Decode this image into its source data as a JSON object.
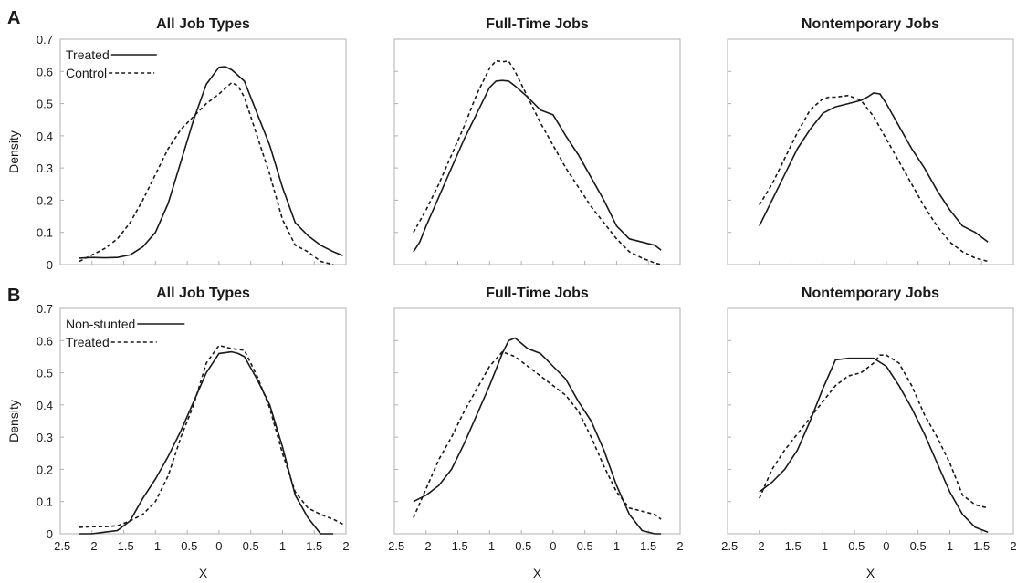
{
  "panels": [
    {
      "letter": "A"
    },
    {
      "letter": "B"
    }
  ],
  "chart_data": [
    {
      "type": "line",
      "panel": "A",
      "title": "All Job Types",
      "xlabel": "",
      "ylabel": "Density",
      "xlim": [
        -2.5,
        2
      ],
      "ylim": [
        0,
        0.7
      ],
      "show_y_ticks": true,
      "show_x_ticks": false,
      "legend": "top-left",
      "series": [
        {
          "name": "Treated",
          "style": "solid",
          "x": [
            -2.2,
            -2.0,
            -1.8,
            -1.6,
            -1.4,
            -1.2,
            -1.0,
            -0.8,
            -0.6,
            -0.4,
            -0.2,
            0.0,
            0.1,
            0.2,
            0.4,
            0.6,
            0.8,
            1.0,
            1.2,
            1.4,
            1.6,
            1.8,
            1.95
          ],
          "y": [
            0.02,
            0.022,
            0.021,
            0.022,
            0.03,
            0.055,
            0.1,
            0.19,
            0.32,
            0.45,
            0.56,
            0.613,
            0.615,
            0.605,
            0.57,
            0.47,
            0.37,
            0.24,
            0.13,
            0.09,
            0.06,
            0.04,
            0.028
          ]
        },
        {
          "name": "Control",
          "style": "dashed",
          "x": [
            -2.2,
            -2.0,
            -1.8,
            -1.6,
            -1.4,
            -1.2,
            -1.0,
            -0.8,
            -0.6,
            -0.4,
            -0.2,
            0.0,
            0.2,
            0.3,
            0.4,
            0.6,
            0.8,
            1.0,
            1.2,
            1.4,
            1.6,
            1.8
          ],
          "y": [
            0.01,
            0.03,
            0.05,
            0.08,
            0.13,
            0.2,
            0.28,
            0.36,
            0.42,
            0.46,
            0.5,
            0.53,
            0.565,
            0.555,
            0.52,
            0.4,
            0.28,
            0.14,
            0.06,
            0.04,
            0.01,
            0.0
          ]
        }
      ]
    },
    {
      "type": "line",
      "panel": "A",
      "title": "Full-Time Jobs",
      "xlabel": "",
      "ylabel": "",
      "xlim": [
        -2.5,
        2
      ],
      "ylim": [
        0,
        0.7
      ],
      "show_y_ticks": false,
      "show_x_ticks": false,
      "series": [
        {
          "style": "solid",
          "x": [
            -2.2,
            -2.1,
            -2.0,
            -1.8,
            -1.6,
            -1.4,
            -1.2,
            -1.0,
            -0.9,
            -0.8,
            -0.7,
            -0.6,
            -0.4,
            -0.2,
            0.0,
            0.2,
            0.4,
            0.6,
            0.8,
            1.0,
            1.2,
            1.4,
            1.6,
            1.7
          ],
          "y": [
            0.04,
            0.07,
            0.12,
            0.21,
            0.3,
            0.39,
            0.47,
            0.55,
            0.57,
            0.572,
            0.57,
            0.555,
            0.52,
            0.48,
            0.465,
            0.4,
            0.34,
            0.27,
            0.2,
            0.12,
            0.08,
            0.07,
            0.06,
            0.045
          ]
        },
        {
          "style": "dashed",
          "x": [
            -2.2,
            -2.0,
            -1.8,
            -1.6,
            -1.4,
            -1.2,
            -1.0,
            -0.9,
            -0.8,
            -0.7,
            -0.6,
            -0.4,
            -0.2,
            0.0,
            0.2,
            0.4,
            0.6,
            0.8,
            1.0,
            1.2,
            1.4,
            1.6,
            1.7
          ],
          "y": [
            0.1,
            0.17,
            0.25,
            0.34,
            0.43,
            0.53,
            0.61,
            0.633,
            0.63,
            0.632,
            0.6,
            0.52,
            0.44,
            0.37,
            0.3,
            0.24,
            0.18,
            0.13,
            0.08,
            0.04,
            0.02,
            0.005,
            0.0
          ]
        }
      ]
    },
    {
      "type": "line",
      "panel": "A",
      "title": "Nontemporary Jobs",
      "xlabel": "",
      "ylabel": "",
      "xlim": [
        -2.5,
        2
      ],
      "ylim": [
        0,
        0.7
      ],
      "show_y_ticks": false,
      "show_x_ticks": false,
      "series": [
        {
          "style": "solid",
          "x": [
            -2.0,
            -1.8,
            -1.6,
            -1.4,
            -1.2,
            -1.0,
            -0.8,
            -0.6,
            -0.4,
            -0.3,
            -0.2,
            -0.1,
            0.0,
            0.2,
            0.4,
            0.6,
            0.8,
            1.0,
            1.2,
            1.4,
            1.6
          ],
          "y": [
            0.12,
            0.2,
            0.28,
            0.36,
            0.42,
            0.47,
            0.49,
            0.5,
            0.51,
            0.52,
            0.533,
            0.53,
            0.5,
            0.43,
            0.36,
            0.3,
            0.23,
            0.17,
            0.12,
            0.1,
            0.07
          ]
        },
        {
          "style": "dashed",
          "x": [
            -2.0,
            -1.8,
            -1.6,
            -1.4,
            -1.2,
            -1.0,
            -0.9,
            -0.8,
            -0.6,
            -0.4,
            -0.2,
            0.0,
            0.2,
            0.4,
            0.6,
            0.8,
            1.0,
            1.2,
            1.4,
            1.6
          ],
          "y": [
            0.185,
            0.25,
            0.33,
            0.41,
            0.48,
            0.515,
            0.52,
            0.52,
            0.525,
            0.51,
            0.46,
            0.39,
            0.32,
            0.25,
            0.18,
            0.12,
            0.07,
            0.04,
            0.02,
            0.01
          ]
        }
      ]
    },
    {
      "type": "line",
      "panel": "B",
      "title": "All Job Types",
      "xlabel": "X",
      "ylabel": "Density",
      "xlim": [
        -2.5,
        2
      ],
      "ylim": [
        0,
        0.7
      ],
      "show_y_ticks": true,
      "show_x_ticks": true,
      "legend": "top-left",
      "series": [
        {
          "name": "Non-stunted",
          "style": "solid",
          "x": [
            -2.2,
            -2.0,
            -1.8,
            -1.6,
            -1.4,
            -1.2,
            -1.0,
            -0.8,
            -0.6,
            -0.4,
            -0.2,
            0.0,
            0.2,
            0.3,
            0.4,
            0.6,
            0.8,
            1.0,
            1.2,
            1.4,
            1.6,
            1.8
          ],
          "y": [
            0.0,
            0.0,
            0.005,
            0.01,
            0.04,
            0.11,
            0.17,
            0.24,
            0.32,
            0.41,
            0.5,
            0.56,
            0.565,
            0.56,
            0.55,
            0.48,
            0.4,
            0.27,
            0.12,
            0.05,
            0.0,
            0.0
          ]
        },
        {
          "name": "Treated",
          "style": "dashed",
          "x": [
            -2.2,
            -2.0,
            -1.8,
            -1.6,
            -1.4,
            -1.2,
            -1.0,
            -0.8,
            -0.6,
            -0.4,
            -0.2,
            0.0,
            0.2,
            0.4,
            0.6,
            0.8,
            1.0,
            1.2,
            1.4,
            1.6,
            1.8,
            1.95
          ],
          "y": [
            0.02,
            0.022,
            0.022,
            0.025,
            0.04,
            0.06,
            0.1,
            0.18,
            0.3,
            0.4,
            0.53,
            0.585,
            0.575,
            0.57,
            0.49,
            0.39,
            0.25,
            0.13,
            0.08,
            0.06,
            0.045,
            0.03
          ]
        }
      ]
    },
    {
      "type": "line",
      "panel": "B",
      "title": "Full-Time Jobs",
      "xlabel": "X",
      "ylabel": "",
      "xlim": [
        -2.5,
        2
      ],
      "ylim": [
        0,
        0.7
      ],
      "show_y_ticks": false,
      "show_x_ticks": true,
      "series": [
        {
          "style": "solid",
          "x": [
            -2.2,
            -2.0,
            -1.8,
            -1.6,
            -1.4,
            -1.2,
            -1.0,
            -0.8,
            -0.7,
            -0.6,
            -0.4,
            -0.2,
            0.0,
            0.2,
            0.4,
            0.6,
            0.8,
            1.0,
            1.2,
            1.4,
            1.6,
            1.7
          ],
          "y": [
            0.1,
            0.12,
            0.15,
            0.2,
            0.28,
            0.37,
            0.46,
            0.56,
            0.6,
            0.608,
            0.575,
            0.56,
            0.52,
            0.48,
            0.41,
            0.35,
            0.26,
            0.15,
            0.06,
            0.01,
            0.0,
            0.0
          ]
        },
        {
          "style": "dashed",
          "x": [
            -2.2,
            -2.0,
            -1.8,
            -1.6,
            -1.4,
            -1.2,
            -1.0,
            -0.8,
            -0.6,
            -0.4,
            -0.2,
            0.0,
            0.2,
            0.4,
            0.6,
            0.8,
            1.0,
            1.2,
            1.4,
            1.6,
            1.7
          ],
          "y": [
            0.05,
            0.14,
            0.23,
            0.3,
            0.38,
            0.45,
            0.52,
            0.565,
            0.55,
            0.52,
            0.49,
            0.46,
            0.43,
            0.38,
            0.3,
            0.21,
            0.13,
            0.08,
            0.07,
            0.06,
            0.045
          ]
        }
      ]
    },
    {
      "type": "line",
      "panel": "B",
      "title": "Nontemporary Jobs",
      "xlabel": "X",
      "ylabel": "",
      "xlim": [
        -2.5,
        2
      ],
      "ylim": [
        0,
        0.7
      ],
      "show_y_ticks": false,
      "show_x_ticks": true,
      "series": [
        {
          "style": "solid",
          "x": [
            -2.0,
            -1.8,
            -1.6,
            -1.4,
            -1.2,
            -1.0,
            -0.8,
            -0.6,
            -0.4,
            -0.2,
            0.0,
            0.2,
            0.4,
            0.6,
            0.8,
            1.0,
            1.2,
            1.4,
            1.6
          ],
          "y": [
            0.13,
            0.16,
            0.2,
            0.26,
            0.35,
            0.45,
            0.54,
            0.545,
            0.545,
            0.545,
            0.52,
            0.46,
            0.39,
            0.31,
            0.22,
            0.13,
            0.06,
            0.02,
            0.005
          ]
        },
        {
          "style": "dashed",
          "x": [
            -2.0,
            -1.8,
            -1.6,
            -1.4,
            -1.2,
            -1.0,
            -0.8,
            -0.6,
            -0.4,
            -0.2,
            -0.1,
            0.0,
            0.2,
            0.4,
            0.6,
            0.8,
            1.0,
            1.2,
            1.4,
            1.6
          ],
          "y": [
            0.11,
            0.2,
            0.26,
            0.31,
            0.36,
            0.41,
            0.46,
            0.49,
            0.5,
            0.53,
            0.555,
            0.555,
            0.53,
            0.46,
            0.37,
            0.3,
            0.22,
            0.12,
            0.09,
            0.08
          ]
        }
      ]
    }
  ],
  "axes": {
    "y_ticks": [
      0,
      0.1,
      0.2,
      0.3,
      0.4,
      0.5,
      0.6,
      0.7
    ],
    "y_tick_labels": [
      "0",
      "0.1",
      "0.2",
      "0.3",
      "0.4",
      "0.5",
      "0.6",
      "0.7"
    ],
    "x_ticks": [
      -2.5,
      -2,
      -1.5,
      -1,
      -0.5,
      0,
      0.5,
      1,
      1.5,
      2
    ],
    "x_tick_labels": [
      "-2.5",
      "-2",
      "-1.5",
      "-1",
      "-0.5",
      "0",
      "0.5",
      "1",
      "1.5",
      "2"
    ]
  },
  "colors": {
    "line": "#1a1a1a",
    "frame": "#b0b0b0"
  }
}
